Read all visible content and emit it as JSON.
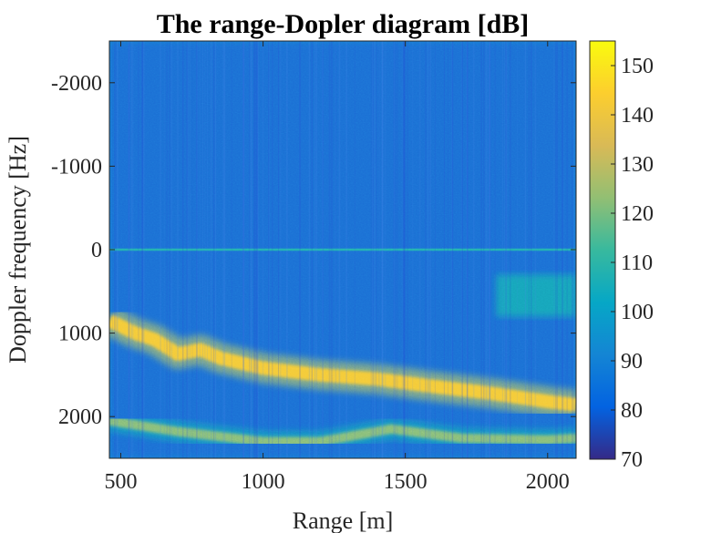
{
  "chart_data": {
    "type": "heatmap",
    "title": "The range-Dopler diagram [dB]",
    "xlabel": "Range [m]",
    "ylabel": "Doppler frequency [Hz]",
    "xlim": [
      460,
      2100
    ],
    "ylim": [
      -2500,
      2500
    ],
    "y_direction": "reversed",
    "x_ticks": [
      500,
      1000,
      1500,
      2000
    ],
    "y_ticks": [
      -2000,
      -1000,
      0,
      1000,
      2000
    ],
    "colorbar": {
      "label": "",
      "limits": [
        70,
        155
      ],
      "ticks": [
        70,
        80,
        90,
        100,
        110,
        120,
        130,
        140,
        150
      ],
      "colormap": "parula",
      "colors": [
        "#352a87",
        "#0363e1",
        "#1485d4",
        "#06a7c6",
        "#38b99e",
        "#92bf73",
        "#d9ba56",
        "#fcce2e",
        "#f9fb0e"
      ]
    },
    "background_level_db": 92,
    "features": [
      {
        "name": "main-echo-band",
        "level_db": 142,
        "width_hz": 160,
        "path": [
          {
            "range": 460,
            "doppler": 850
          },
          {
            "range": 550,
            "doppler": 1000
          },
          {
            "range": 620,
            "doppler": 1080
          },
          {
            "range": 700,
            "doppler": 1250
          },
          {
            "range": 780,
            "doppler": 1200
          },
          {
            "range": 850,
            "doppler": 1300
          },
          {
            "range": 1000,
            "doppler": 1420
          },
          {
            "range": 1200,
            "doppler": 1500
          },
          {
            "range": 1400,
            "doppler": 1550
          },
          {
            "range": 1600,
            "doppler": 1640
          },
          {
            "range": 1800,
            "doppler": 1720
          },
          {
            "range": 2000,
            "doppler": 1820
          },
          {
            "range": 2100,
            "doppler": 1860
          }
        ]
      },
      {
        "name": "secondary-band",
        "level_db": 122,
        "width_hz": 110,
        "path": [
          {
            "range": 460,
            "doppler": 2050
          },
          {
            "range": 700,
            "doppler": 2180
          },
          {
            "range": 1000,
            "doppler": 2300
          },
          {
            "range": 1200,
            "doppler": 2300
          },
          {
            "range": 1450,
            "doppler": 2150
          },
          {
            "range": 1700,
            "doppler": 2260
          },
          {
            "range": 2000,
            "doppler": 2280
          },
          {
            "range": 2100,
            "doppler": 2260
          }
        ]
      },
      {
        "name": "zero-doppler-line",
        "level_db": 108,
        "doppler": 0,
        "range_span": [
          460,
          2100
        ]
      },
      {
        "name": "right-clutter-patch",
        "level_db": 106,
        "range_span": [
          1820,
          2100
        ],
        "doppler_span": [
          300,
          800
        ]
      }
    ]
  }
}
